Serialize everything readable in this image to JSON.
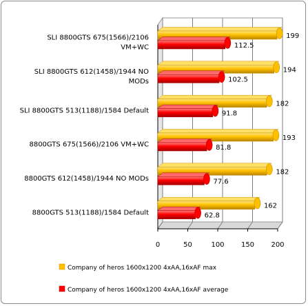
{
  "chart_data": {
    "type": "bar",
    "orientation": "horizontal",
    "categories": [
      [
        "SLI 8800GTS 675(1566)/2106",
        "VM+WC"
      ],
      [
        "SLI 8800GTS 612(1458)/1944 NO",
        "MODs"
      ],
      [
        "SLI 8800GTS 513(1188)/1584 Default"
      ],
      [
        "8800GTS 675(1566)/2106 VM+WC"
      ],
      [
        "8800GTS 612(1458)/1944 NO MODs"
      ],
      [
        "8800GTS 513(1188)/1584 Default"
      ]
    ],
    "series": [
      {
        "name": "Company of heros 1600x1200 4xAA,16xAF max",
        "color": "#FFC000",
        "values": [
          199,
          194,
          182,
          193,
          182,
          162
        ],
        "labels": [
          "199",
          "194",
          "182",
          "193",
          "182",
          "162"
        ]
      },
      {
        "name": "Company of heros 1600x1200 4xAA,16xAF average",
        "color": "#FF0000",
        "values": [
          112.5,
          102.5,
          91.8,
          81.8,
          77.6,
          62.8
        ],
        "labels": [
          "112.5",
          "102.5",
          "91.8",
          "81.8",
          "77.6",
          "62.8"
        ]
      }
    ],
    "xlim": [
      0,
      200
    ],
    "xticks": [
      "0",
      "50",
      "100",
      "150",
      "200"
    ],
    "grid": true,
    "style": "3d",
    "legend_position": "bottom"
  }
}
